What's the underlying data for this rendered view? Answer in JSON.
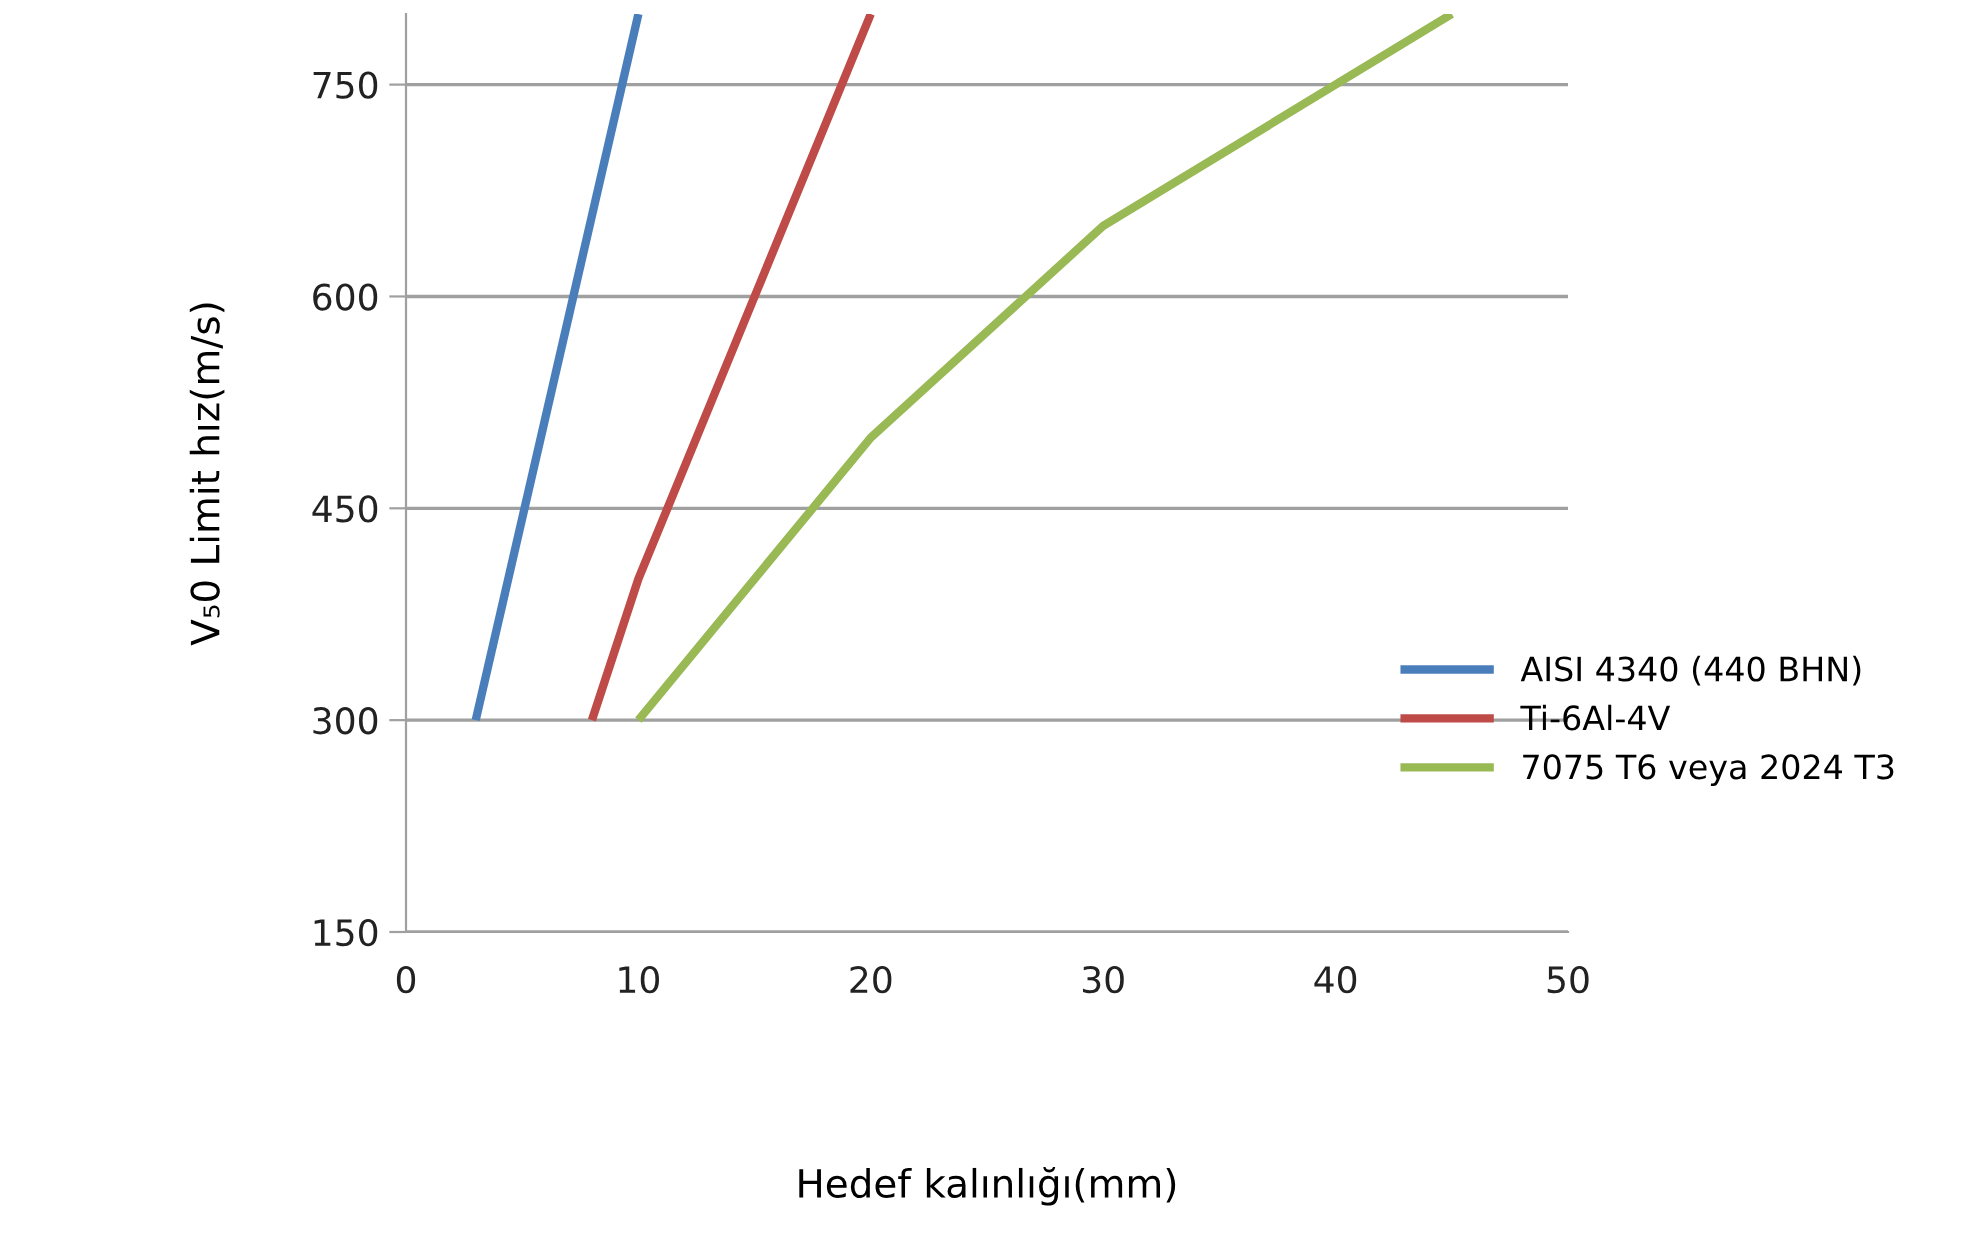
{
  "chart_data": {
    "type": "line",
    "xlabel": "Hedef kalınlığı(mm)",
    "ylabel": "V₅0 Limit hız(m/s)",
    "xlim": [
      0,
      50
    ],
    "xticks": [
      0,
      10,
      20,
      30,
      40,
      50
    ],
    "ylim": [
      150,
      800
    ],
    "yticks": [
      150,
      300,
      450,
      600,
      750
    ],
    "grid": "y",
    "legend": "right",
    "marker": "none",
    "line_style": "solid",
    "series": [
      {
        "name": "AISI 4340 (440 BHN)",
        "color": "#4a7ebb",
        "x": [
          3,
          10
        ],
        "values": [
          300,
          800
        ]
      },
      {
        "name": "Ti-6Al-4V",
        "color": "#be4b48",
        "x": [
          8,
          10,
          20
        ],
        "values": [
          300,
          400,
          800
        ]
      },
      {
        "name": "7075 T6 veya 2024 T3",
        "color": "#98b954",
        "x": [
          10,
          20,
          30,
          45
        ],
        "values": [
          300,
          500,
          650,
          800
        ]
      }
    ]
  }
}
